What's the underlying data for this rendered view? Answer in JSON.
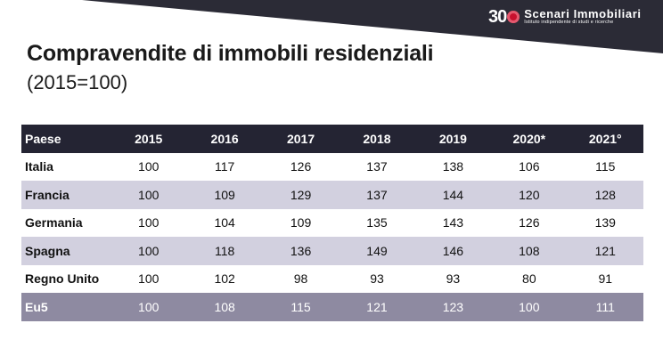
{
  "header": {
    "logo": {
      "number": "30",
      "name": "Scenari Immobiliari",
      "tagline": "Istituto indipendente di studi e ricerche"
    },
    "banner_color": "#2b2b36",
    "accent_color": "#c8102e"
  },
  "chart_data": {
    "type": "table",
    "title": "Compravendite di immobili residenziali",
    "subtitle": "(2015=100)",
    "columns": [
      "Paese",
      "2015",
      "2016",
      "2017",
      "2018",
      "2019",
      "2020*",
      "2021°"
    ],
    "rows": [
      {
        "label": "Italia",
        "values": [
          100,
          117,
          126,
          137,
          138,
          106,
          115
        ]
      },
      {
        "label": "Francia",
        "values": [
          100,
          109,
          129,
          137,
          144,
          120,
          128
        ]
      },
      {
        "label": "Germania",
        "values": [
          100,
          104,
          109,
          135,
          143,
          126,
          139
        ]
      },
      {
        "label": "Spagna",
        "values": [
          100,
          118,
          136,
          149,
          146,
          108,
          121
        ]
      },
      {
        "label": "Regno Unito",
        "values": [
          100,
          102,
          98,
          93,
          93,
          80,
          91
        ]
      },
      {
        "label": "Eu5",
        "values": [
          100,
          108,
          115,
          121,
          123,
          100,
          111
        ]
      }
    ]
  }
}
